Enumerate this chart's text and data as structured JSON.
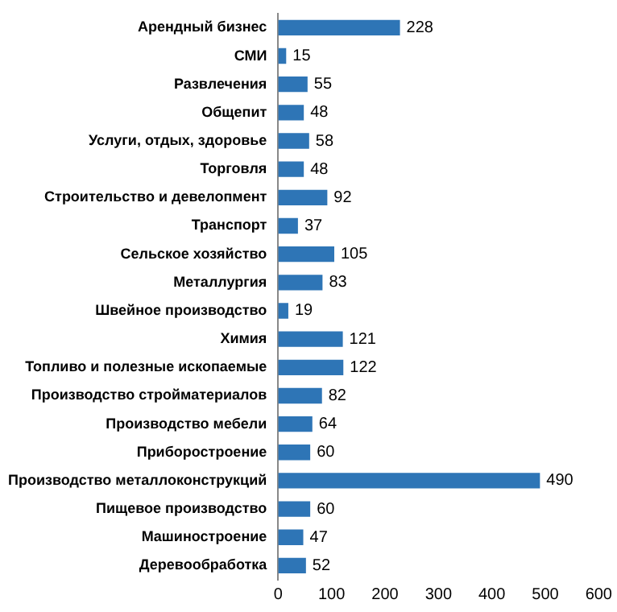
{
  "chart_data": {
    "type": "bar",
    "orientation": "horizontal",
    "categories": [
      "Арендный бизнес",
      "СМИ",
      "Развлечения",
      "Общепит",
      "Услуги, отдых, здоровье",
      "Торговля",
      "Строительство и девелопмент",
      "Транспорт",
      "Сельское хозяйство",
      "Металлургия",
      "Швейное производство",
      "Химия",
      "Топливо и полезные ископаемые",
      "Производство стройматериалов",
      "Производство мебели",
      "Приборостроение",
      "Производство металлоконструкций",
      "Пищевое производство",
      "Машиностроение",
      "Деревообработка"
    ],
    "values": [
      228,
      15,
      55,
      48,
      58,
      48,
      92,
      37,
      105,
      83,
      19,
      121,
      122,
      82,
      64,
      60,
      490,
      60,
      47,
      52
    ],
    "color": "#2e75b6",
    "data_labels": true,
    "legend": false,
    "grid": false,
    "xlim": [
      0,
      600
    ],
    "xticks": [
      0,
      100,
      200,
      300,
      400,
      500,
      600
    ]
  }
}
